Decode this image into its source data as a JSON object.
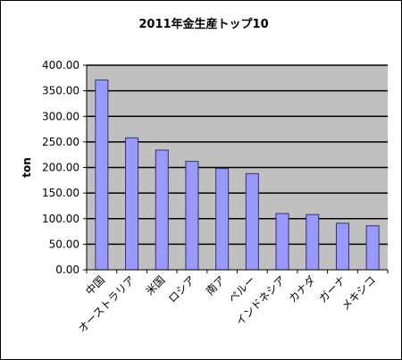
{
  "chart_data": {
    "type": "bar",
    "title": "2011年金生産トップ10",
    "xlabel": "",
    "ylabel": "ton",
    "categories": [
      "中国",
      "オーストラリア",
      "米国",
      "ロシア",
      "南ア",
      "ペルー",
      "インドネシア",
      "カナダ",
      "ガーナ",
      "メキシコ"
    ],
    "values": [
      371,
      258,
      234,
      212,
      198,
      188,
      110,
      108,
      91,
      86
    ],
    "ylim": [
      0,
      400
    ],
    "yticks": [
      "0.00",
      "50.00",
      "100.00",
      "150.00",
      "200.00",
      "250.00",
      "300.00",
      "350.00",
      "400.00"
    ],
    "grid": true,
    "legend": "none",
    "colors": {
      "plot_bg": "#c0c0c0",
      "bar_fill": "#9999ff",
      "bar_stroke": "#333366",
      "grid": "#000000"
    }
  }
}
